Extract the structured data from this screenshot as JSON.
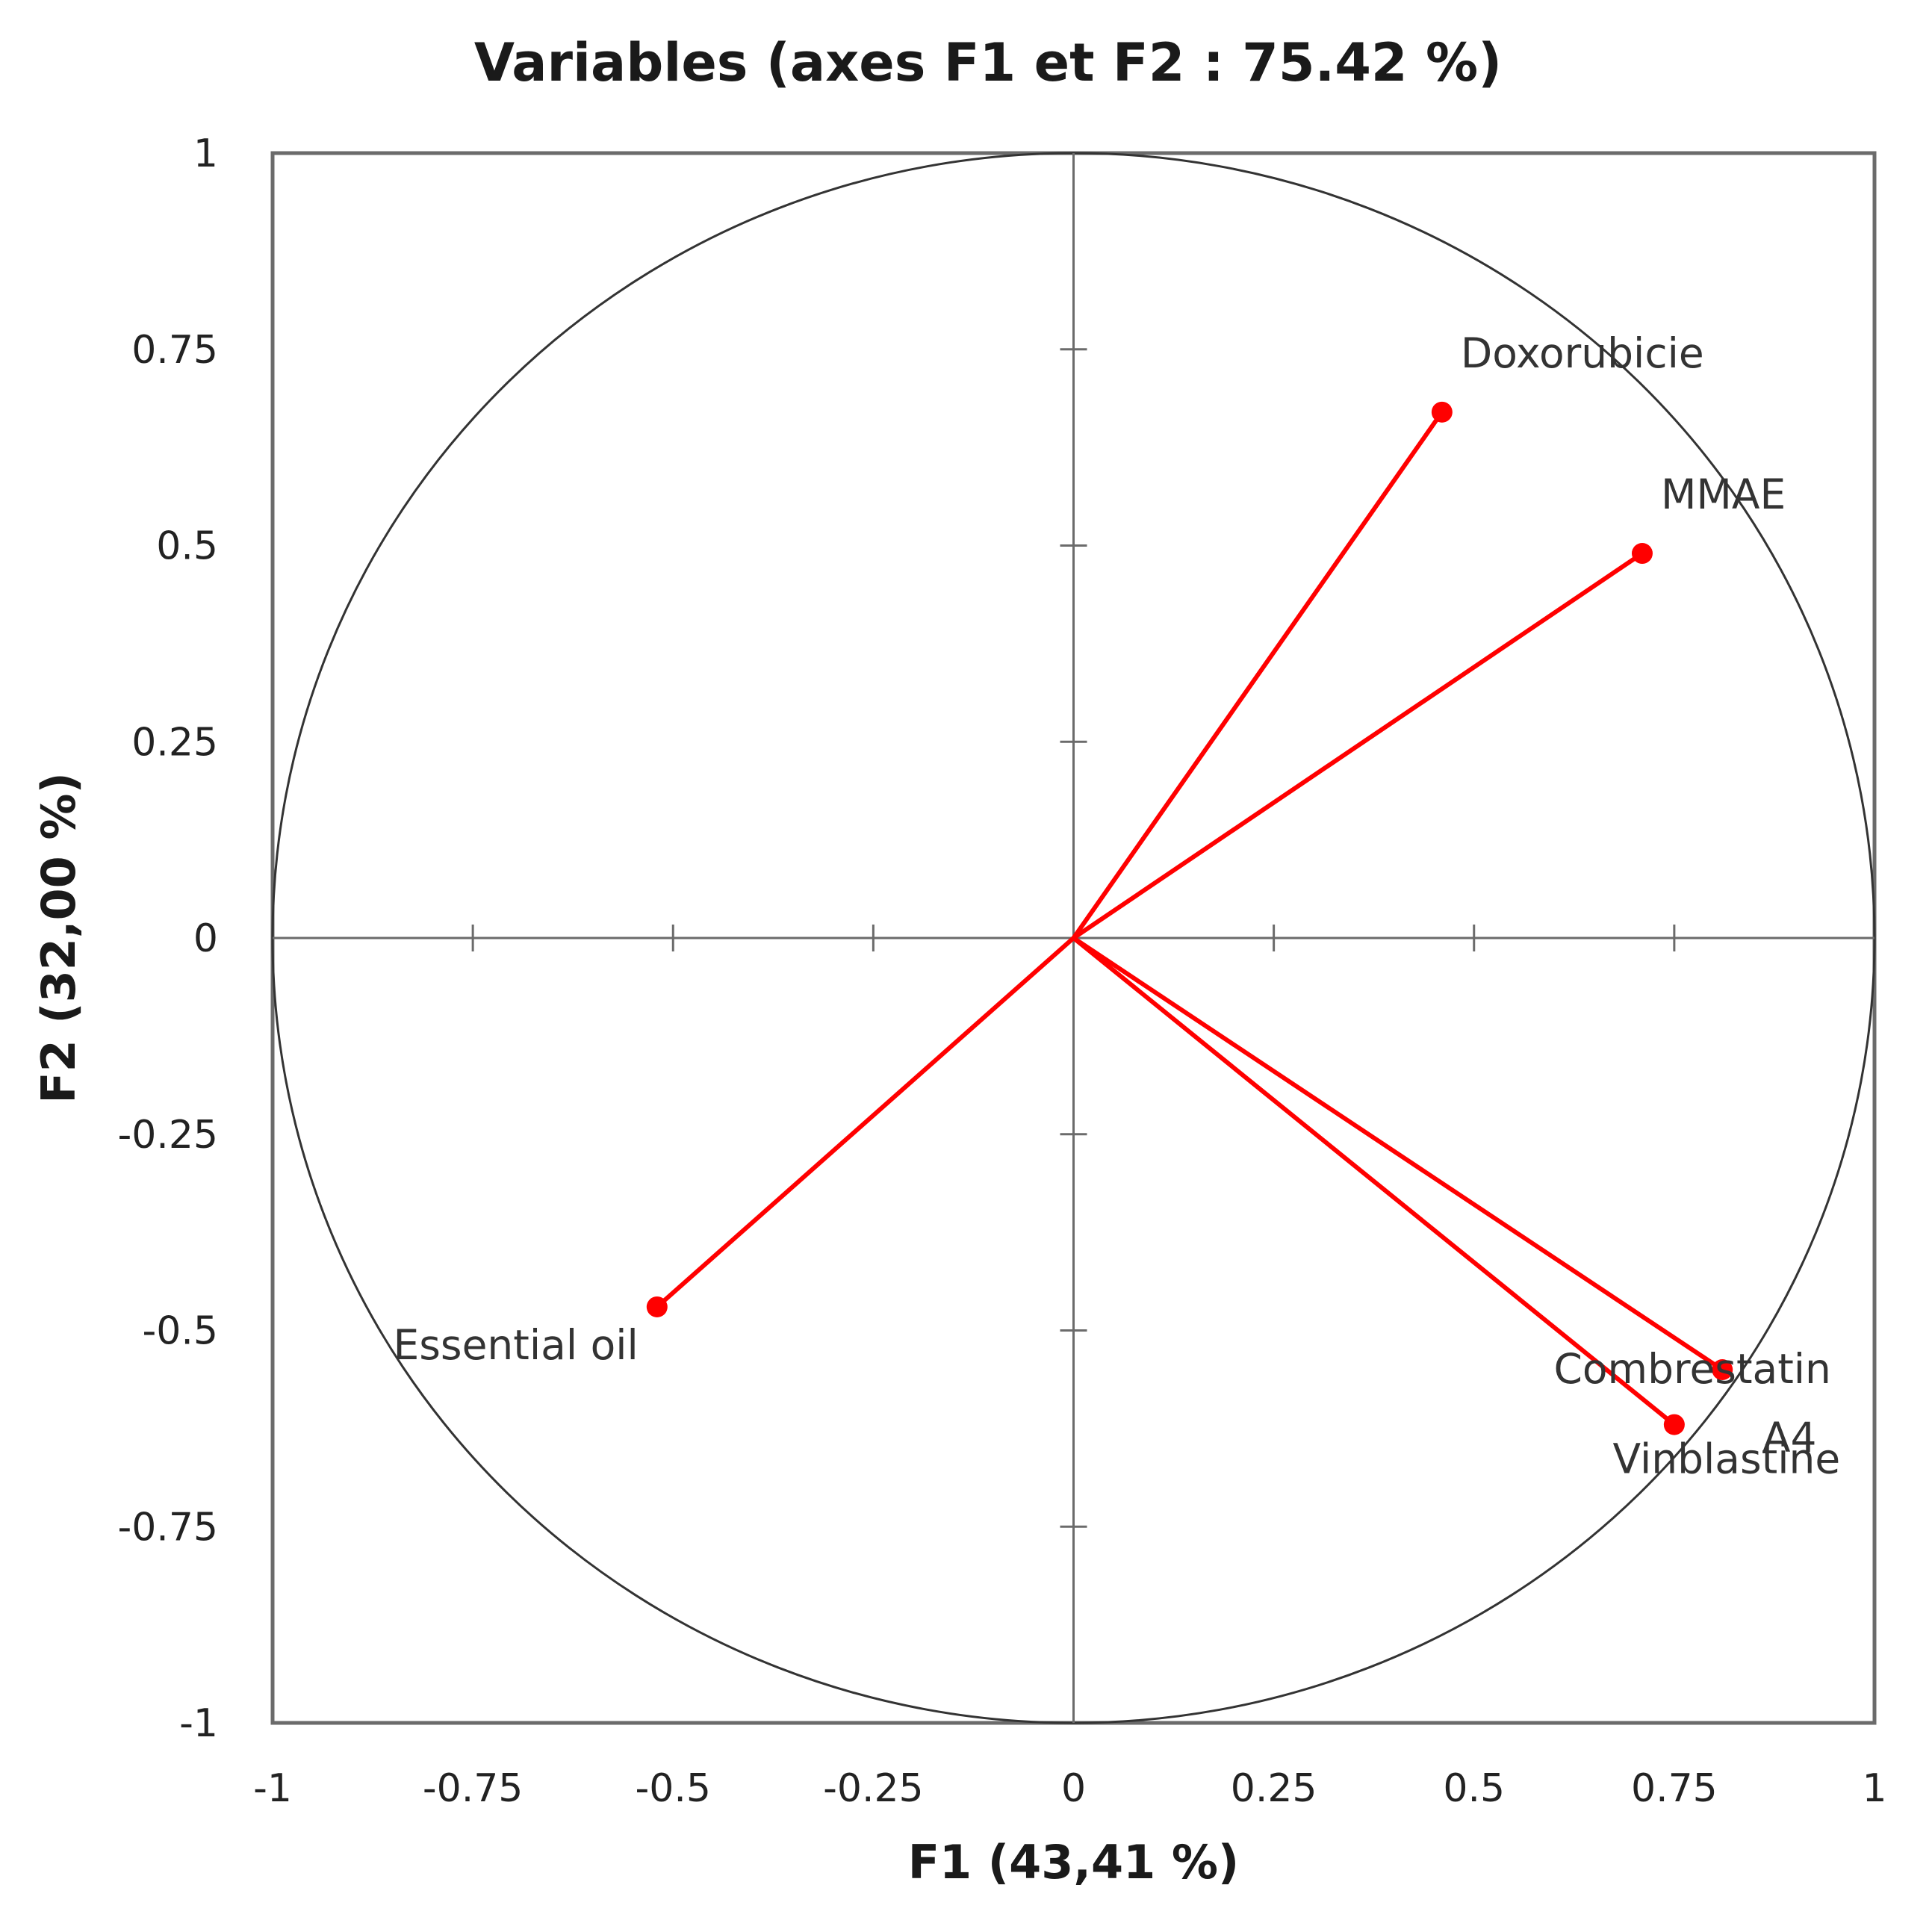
{
  "chart_data": {
    "type": "scatter",
    "subtype": "pca-correlation-circle",
    "title": "Variables (axes F1 et F2 : 75.42 %)",
    "xlabel": "F1 (43,41 %)",
    "ylabel": "F2 (32,00 %)",
    "xlim": [
      -1,
      1
    ],
    "ylim": [
      -1,
      1
    ],
    "x_ticks": [
      -1,
      -0.75,
      -0.5,
      -0.25,
      0,
      0.25,
      0.5,
      0.75,
      1
    ],
    "x_tick_labels": [
      "-1",
      "-0.75",
      "-0.5",
      "-0.25",
      "0",
      "0.25",
      "0.5",
      "0.75",
      "1"
    ],
    "y_ticks": [
      1,
      0.75,
      0.5,
      0.25,
      0,
      -0.25,
      -0.5,
      -0.75,
      -1
    ],
    "y_tick_labels": [
      "1",
      "0.75",
      "0.5",
      "0.25",
      "0",
      "-0.25",
      "-0.5",
      "-0.75",
      "-1"
    ],
    "unit_circle": true,
    "grid": false,
    "vector_color": "#ff0000",
    "points": [
      {
        "label": "Doxorubicie",
        "x": 0.46,
        "y": 0.67
      },
      {
        "label": "MMAE",
        "x": 0.71,
        "y": 0.49
      },
      {
        "label": "Combrestatin A4",
        "x": 0.81,
        "y": -0.55
      },
      {
        "label": "Vinblastine",
        "x": 0.75,
        "y": -0.62
      },
      {
        "label": "Essential oil",
        "x": -0.52,
        "y": -0.47
      }
    ]
  }
}
